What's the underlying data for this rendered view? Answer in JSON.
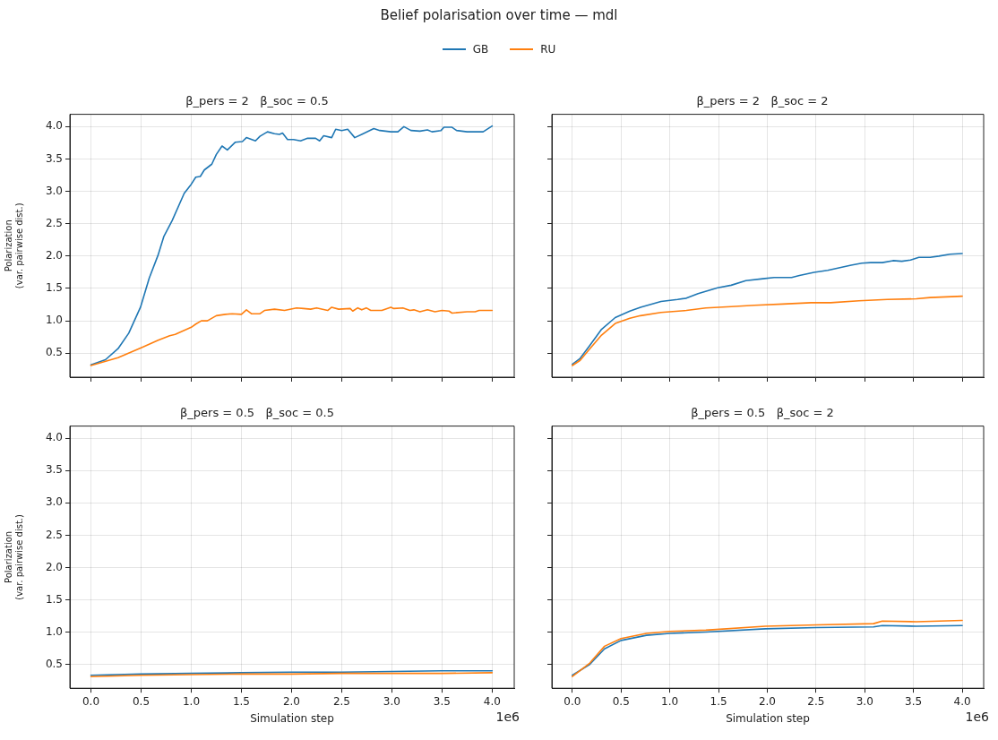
{
  "chart_data": [
    {
      "type": "line",
      "title": "β_pers = 2   β_soc = 0.5",
      "ylabel": "Polarization\n(var. pairwise dist.)",
      "annotations": [
        "Belief polarisation over time  —  mdl"
      ],
      "legend": "top",
      "grid": true,
      "marker": "none",
      "line_style": "solid",
      "tick_labels": "y",
      "xlim": [
        -0.21,
        4.22
      ],
      "xticks": [
        {
          "value": 0,
          "label": null
        },
        {
          "value": 0.5,
          "label": null
        },
        {
          "value": 1,
          "label": null
        },
        {
          "value": 1.5,
          "label": null
        },
        {
          "value": 2,
          "label": null
        },
        {
          "value": 2.5,
          "label": null
        },
        {
          "value": 3,
          "label": null
        },
        {
          "value": 3.5,
          "label": null
        },
        {
          "value": 4,
          "label": null
        }
      ],
      "ylim": [
        0.13,
        4.19
      ],
      "yticks": [
        {
          "value": 0.5,
          "label": "0.5"
        },
        {
          "value": 1,
          "label": "1.0"
        },
        {
          "value": 1.5,
          "label": "1.5"
        },
        {
          "value": 2,
          "label": "2.0"
        },
        {
          "value": 2.5,
          "label": "2.5"
        },
        {
          "value": 3,
          "label": "3.0"
        },
        {
          "value": 3.5,
          "label": "3.5"
        },
        {
          "value": 4,
          "label": "4.0"
        }
      ],
      "series": [
        {
          "name": "GB",
          "color": "#1f77b4",
          "x": [
            0,
            0.145,
            0.27,
            0.377,
            0.494,
            0.581,
            0.668,
            0.726,
            0.81,
            0.93,
            1.0,
            1.045,
            1.09,
            1.13,
            1.205,
            1.25,
            1.307,
            1.36,
            1.44,
            1.51,
            1.55,
            1.64,
            1.685,
            1.76,
            1.83,
            1.88,
            1.91,
            1.96,
            2.02,
            2.09,
            2.16,
            2.24,
            2.28,
            2.32,
            2.4,
            2.44,
            2.5,
            2.56,
            2.63,
            2.7,
            2.82,
            2.88,
            2.99,
            3.06,
            3.12,
            3.19,
            3.28,
            3.355,
            3.4,
            3.49,
            3.52,
            3.6,
            3.645,
            3.75,
            3.91,
            4.0
          ],
          "values": [
            0.32,
            0.4,
            0.57,
            0.81,
            1.21,
            1.66,
            2.01,
            2.3,
            2.55,
            2.97,
            3.11,
            3.22,
            3.23,
            3.33,
            3.42,
            3.57,
            3.7,
            3.64,
            3.76,
            3.77,
            3.83,
            3.78,
            3.85,
            3.92,
            3.89,
            3.88,
            3.9,
            3.8,
            3.8,
            3.78,
            3.82,
            3.82,
            3.78,
            3.86,
            3.83,
            3.96,
            3.94,
            3.96,
            3.83,
            3.88,
            3.97,
            3.94,
            3.92,
            3.92,
            4.0,
            3.94,
            3.93,
            3.95,
            3.92,
            3.94,
            3.99,
            3.99,
            3.94,
            3.92,
            3.92,
            4.01
          ]
        },
        {
          "name": "RU",
          "color": "#ff7f0e",
          "x": [
            0,
            0.27,
            0.51,
            0.67,
            0.785,
            0.84,
            1.0,
            1.045,
            1.1,
            1.16,
            1.25,
            1.34,
            1.41,
            1.5,
            1.55,
            1.6,
            1.685,
            1.73,
            1.83,
            1.93,
            2.05,
            2.12,
            2.19,
            2.25,
            2.36,
            2.4,
            2.47,
            2.585,
            2.61,
            2.66,
            2.7,
            2.745,
            2.79,
            2.9,
            2.99,
            3.02,
            3.11,
            3.18,
            3.22,
            3.28,
            3.355,
            3.43,
            3.5,
            3.57,
            3.6,
            3.75,
            3.83,
            3.87,
            4.0
          ],
          "values": [
            0.31,
            0.43,
            0.59,
            0.7,
            0.77,
            0.79,
            0.9,
            0.95,
            1.0,
            1.0,
            1.08,
            1.1,
            1.11,
            1.1,
            1.17,
            1.11,
            1.11,
            1.16,
            1.18,
            1.16,
            1.2,
            1.19,
            1.18,
            1.2,
            1.16,
            1.21,
            1.18,
            1.19,
            1.15,
            1.2,
            1.17,
            1.2,
            1.16,
            1.16,
            1.21,
            1.19,
            1.2,
            1.16,
            1.17,
            1.14,
            1.17,
            1.14,
            1.16,
            1.15,
            1.12,
            1.14,
            1.14,
            1.16,
            1.16
          ]
        }
      ]
    },
    {
      "type": "line",
      "title": "β_pers = 2   β_soc = 2",
      "grid": true,
      "marker": "none",
      "line_style": "solid",
      "tick_labels": false,
      "xlim": [
        -0.21,
        4.22
      ],
      "xticks": [
        {
          "value": 0,
          "label": null
        },
        {
          "value": 0.5,
          "label": null
        },
        {
          "value": 1,
          "label": null
        },
        {
          "value": 1.5,
          "label": null
        },
        {
          "value": 2,
          "label": null
        },
        {
          "value": 2.5,
          "label": null
        },
        {
          "value": 3,
          "label": null
        },
        {
          "value": 3.5,
          "label": null
        },
        {
          "value": 4,
          "label": null
        }
      ],
      "ylim": [
        0.13,
        4.19
      ],
      "yticks": [
        {
          "value": 0.5,
          "label": null
        },
        {
          "value": 1,
          "label": null
        },
        {
          "value": 1.5,
          "label": null
        },
        {
          "value": 2,
          "label": null
        },
        {
          "value": 2.5,
          "label": null
        },
        {
          "value": 3,
          "label": null
        },
        {
          "value": 3.5,
          "label": null
        },
        {
          "value": 4,
          "label": null
        }
      ],
      "series": [
        {
          "color": "#1f77b4",
          "x": [
            0,
            0.08,
            0.18,
            0.3,
            0.44,
            0.59,
            0.7,
            0.91,
            1.08,
            1.17,
            1.29,
            1.49,
            1.63,
            1.78,
            1.955,
            2.07,
            2.25,
            2.33,
            2.48,
            2.62,
            2.86,
            2.97,
            3.06,
            3.18,
            3.29,
            3.38,
            3.47,
            3.555,
            3.67,
            3.76,
            3.875,
            4.0
          ],
          "values": [
            0.33,
            0.42,
            0.62,
            0.87,
            1.05,
            1.15,
            1.21,
            1.3,
            1.33,
            1.35,
            1.42,
            1.51,
            1.55,
            1.62,
            1.65,
            1.67,
            1.67,
            1.7,
            1.75,
            1.78,
            1.86,
            1.89,
            1.9,
            1.9,
            1.93,
            1.92,
            1.94,
            1.98,
            1.98,
            2.0,
            2.03,
            2.04
          ]
        },
        {
          "color": "#ff7f0e",
          "x": [
            0,
            0.08,
            0.18,
            0.3,
            0.44,
            0.59,
            0.7,
            0.91,
            1.17,
            1.37,
            1.63,
            1.87,
            2.16,
            2.45,
            2.65,
            2.94,
            3.23,
            3.53,
            3.67,
            4.0
          ],
          "values": [
            0.31,
            0.39,
            0.57,
            0.78,
            0.96,
            1.04,
            1.08,
            1.13,
            1.16,
            1.2,
            1.22,
            1.24,
            1.26,
            1.28,
            1.28,
            1.31,
            1.33,
            1.34,
            1.36,
            1.38
          ]
        }
      ]
    },
    {
      "type": "line",
      "title": "β_pers = 0.5   β_soc = 0.5",
      "xlabel": "Simulation step",
      "ylabel": "Polarization\n(var. pairwise dist.)",
      "annotations": [
        "1e6"
      ],
      "grid": true,
      "marker": "none",
      "line_style": "solid",
      "xlim": [
        -0.21,
        4.22
      ],
      "xticks": [
        {
          "value": 0,
          "label": "0.0"
        },
        {
          "value": 0.5,
          "label": "0.5"
        },
        {
          "value": 1,
          "label": "1.0"
        },
        {
          "value": 1.5,
          "label": "1.5"
        },
        {
          "value": 2,
          "label": "2.0"
        },
        {
          "value": 2.5,
          "label": "2.5"
        },
        {
          "value": 3,
          "label": "3.0"
        },
        {
          "value": 3.5,
          "label": "3.5"
        },
        {
          "value": 4,
          "label": "4.0"
        }
      ],
      "ylim": [
        0.13,
        4.19
      ],
      "yticks": [
        {
          "value": 0.5,
          "label": "0.5"
        },
        {
          "value": 1,
          "label": "1.0"
        },
        {
          "value": 1.5,
          "label": "1.5"
        },
        {
          "value": 2,
          "label": "2.0"
        },
        {
          "value": 2.5,
          "label": "2.5"
        },
        {
          "value": 3,
          "label": "3.0"
        },
        {
          "value": 3.5,
          "label": "3.5"
        },
        {
          "value": 4,
          "label": "4.0"
        }
      ],
      "series": [
        {
          "color": "#1f77b4",
          "x": [
            0,
            0.5,
            1,
            1.5,
            2,
            2.5,
            3,
            3.5,
            4
          ],
          "values": [
            0.33,
            0.35,
            0.36,
            0.37,
            0.38,
            0.38,
            0.39,
            0.4,
            0.4
          ]
        },
        {
          "color": "#ff7f0e",
          "x": [
            0,
            0.5,
            1,
            1.5,
            2,
            2.5,
            3,
            3.5,
            4
          ],
          "values": [
            0.31,
            0.33,
            0.34,
            0.35,
            0.35,
            0.36,
            0.36,
            0.36,
            0.37
          ]
        }
      ]
    },
    {
      "type": "line",
      "title": "β_pers = 0.5   β_soc = 2",
      "xlabel": "Simulation step",
      "annotations": [
        "1e6"
      ],
      "grid": true,
      "marker": "none",
      "line_style": "solid",
      "tick_labels": "x",
      "xlim": [
        -0.21,
        4.22
      ],
      "xticks": [
        {
          "value": 0,
          "label": "0.0"
        },
        {
          "value": 0.5,
          "label": "0.5"
        },
        {
          "value": 1,
          "label": "1.0"
        },
        {
          "value": 1.5,
          "label": "1.5"
        },
        {
          "value": 2,
          "label": "2.0"
        },
        {
          "value": 2.5,
          "label": "2.5"
        },
        {
          "value": 3,
          "label": "3.0"
        },
        {
          "value": 3.5,
          "label": "3.5"
        },
        {
          "value": 4,
          "label": "4.0"
        }
      ],
      "ylim": [
        0.13,
        4.19
      ],
      "yticks": [
        {
          "value": 0.5,
          "label": null
        },
        {
          "value": 1,
          "label": null
        },
        {
          "value": 1.5,
          "label": null
        },
        {
          "value": 2,
          "label": null
        },
        {
          "value": 2.5,
          "label": null
        },
        {
          "value": 3,
          "label": null
        },
        {
          "value": 3.5,
          "label": null
        },
        {
          "value": 4,
          "label": null
        }
      ],
      "series": [
        {
          "color": "#1f77b4",
          "x": [
            0,
            0.18,
            0.33,
            0.5,
            0.76,
            1.0,
            1.37,
            1.98,
            2.51,
            3.09,
            3.18,
            3.53,
            4.0
          ],
          "values": [
            0.33,
            0.5,
            0.74,
            0.87,
            0.95,
            0.98,
            1.0,
            1.05,
            1.07,
            1.08,
            1.1,
            1.09,
            1.1
          ]
        },
        {
          "color": "#ff7f0e",
          "x": [
            0,
            0.18,
            0.33,
            0.5,
            0.76,
            1.0,
            1.37,
            1.98,
            2.51,
            3.09,
            3.18,
            3.53,
            4.0
          ],
          "values": [
            0.31,
            0.52,
            0.78,
            0.9,
            0.98,
            1.01,
            1.03,
            1.09,
            1.11,
            1.13,
            1.17,
            1.16,
            1.18
          ]
        }
      ]
    }
  ]
}
